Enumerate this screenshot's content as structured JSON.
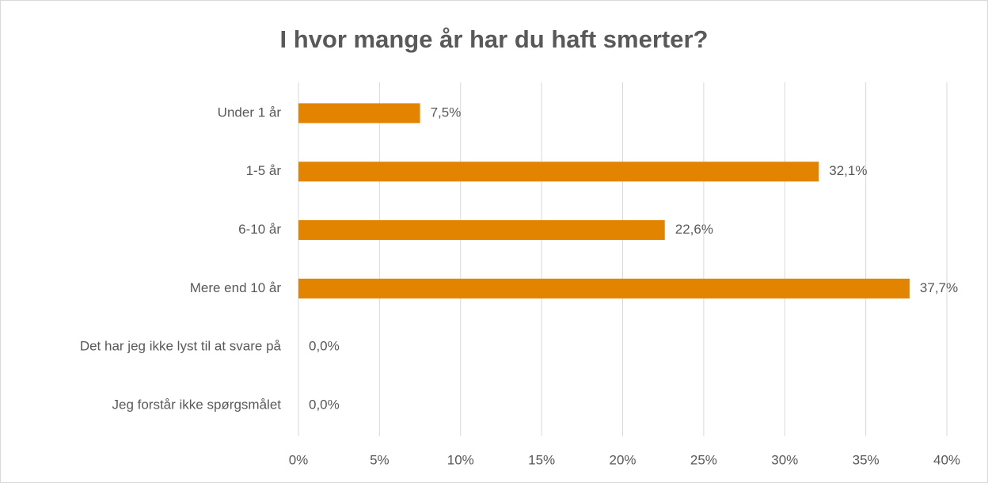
{
  "chart_data": {
    "type": "bar",
    "orientation": "horizontal",
    "title": "I hvor mange år har du haft smerter?",
    "categories": [
      "Under 1 år",
      "1-5 år",
      "6-10 år",
      "Mere end 10 år",
      "Det har jeg ikke lyst til at svare på",
      "Jeg forstår ikke spørgsmålet"
    ],
    "values": [
      7.5,
      32.1,
      22.6,
      37.7,
      0,
      0
    ],
    "value_labels": [
      "7,5%",
      "32,1%",
      "22,6%",
      "37,7%",
      "0,0%",
      "0,0%"
    ],
    "color": "#e38400",
    "xlim": [
      0,
      40
    ],
    "xticks": [
      {
        "value": 0,
        "label": "0%"
      },
      {
        "value": 5,
        "label": "5%"
      },
      {
        "value": 10,
        "label": "10%"
      },
      {
        "value": 15,
        "label": "15%"
      },
      {
        "value": 20,
        "label": "20%"
      },
      {
        "value": 25,
        "label": "25%"
      },
      {
        "value": 30,
        "label": "30%"
      },
      {
        "value": 35,
        "label": "35%"
      },
      {
        "value": 40,
        "label": "40%"
      }
    ],
    "grid": true
  }
}
